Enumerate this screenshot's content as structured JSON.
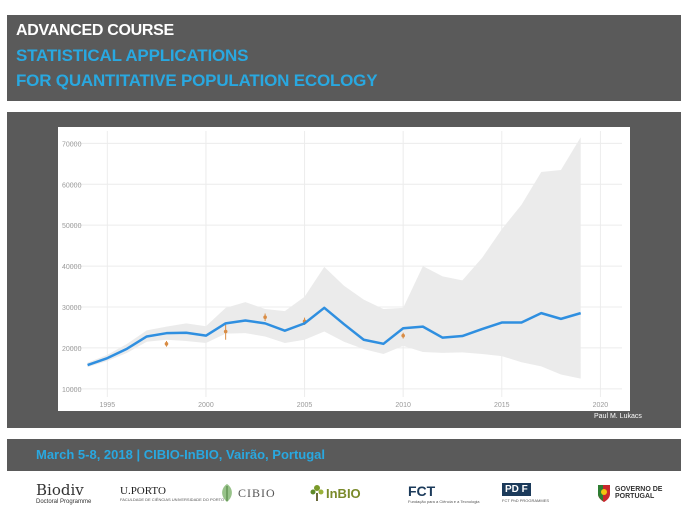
{
  "header": {
    "line1": "ADVANCED COURSE",
    "line2": "STATISTICAL APPLICATIONS",
    "line3": "FOR QUANTITATIVE POPULATION ECOLOGY"
  },
  "credit": "Paul M. Lukacs",
  "footer": {
    "text": "March 5-8, 2018 | CIBIO-InBIO, Vairão, Portugal"
  },
  "logos": {
    "biodiv": "Biodiv",
    "biodiv_sub": "Doctoral Programme",
    "uporto": "U.PORTO",
    "uporto_sub": "FACULDADE DE CIÊNCIAS UNIVERSIDADE DO PORTO",
    "cibio": "CIBIO",
    "inbio": "InBIO",
    "fct": "FCT",
    "fct_sub": "Fundação para a Ciência e a Tecnologia",
    "pdf": "PD F",
    "pdf_sub": "FCT PhD PROGRAMMES",
    "gov": "GOVERNO DE",
    "gov2": "PORTUGAL"
  },
  "colors": {
    "panel": "#5a5a5a",
    "accent": "#29a8e0",
    "line": "#2f8fe0",
    "ribbon": "#ebebeb",
    "obs": "#d98c44"
  },
  "chart_data": {
    "type": "line",
    "title": "",
    "xlabel": "",
    "ylabel": "",
    "xlim": [
      1992.5,
      2021.5
    ],
    "ylim": [
      8000,
      74000
    ],
    "xticks": [
      1995,
      2000,
      2005,
      2010,
      2015,
      2020
    ],
    "yticks": [
      10000,
      20000,
      30000,
      40000,
      50000,
      60000,
      70000
    ],
    "grid": true,
    "series": [
      {
        "kind": "estimate",
        "x": [
          1994,
          1995,
          1996,
          1997,
          1998,
          1999,
          2000,
          2001,
          2002,
          2003,
          2004,
          2005,
          2006,
          2007,
          2008,
          2009,
          2010,
          2011,
          2012,
          2013,
          2014,
          2015,
          2016,
          2017,
          2018,
          2019
        ],
        "y": [
          15800,
          17500,
          19800,
          22800,
          23600,
          23700,
          23000,
          26000,
          26700,
          26000,
          24200,
          26000,
          29800,
          25800,
          22000,
          21000,
          24800,
          25200,
          22500,
          22900,
          24600,
          26200,
          26200,
          28500,
          27100,
          28500
        ]
      },
      {
        "kind": "interval",
        "x": [
          1994,
          1995,
          1996,
          1997,
          1998,
          1999,
          2000,
          2001,
          2002,
          2003,
          2004,
          2005,
          2006,
          2007,
          2008,
          2009,
          2010,
          2011,
          2012,
          2013,
          2014,
          2015,
          2016,
          2017,
          2018,
          2019
        ],
        "lower": [
          15300,
          16800,
          18800,
          21500,
          22000,
          21700,
          21200,
          23500,
          23600,
          22800,
          21200,
          22000,
          24000,
          21500,
          19700,
          18500,
          20500,
          19000,
          18800,
          18900,
          18500,
          18000,
          16500,
          15500,
          13500,
          12500
        ],
        "upper": [
          16400,
          18300,
          21000,
          24300,
          25200,
          26000,
          25300,
          29800,
          31200,
          29500,
          29000,
          32500,
          39800,
          35200,
          31800,
          29500,
          29800,
          40000,
          37500,
          36500,
          42000,
          49000,
          55000,
          63000,
          63500,
          71500
        ]
      },
      {
        "kind": "observations",
        "x": [
          1998,
          2001,
          2003,
          2005,
          2010
        ],
        "y": [
          21000,
          24000,
          27500,
          26500,
          23000
        ],
        "err": [
          700,
          2000,
          900,
          900,
          700
        ]
      }
    ]
  }
}
